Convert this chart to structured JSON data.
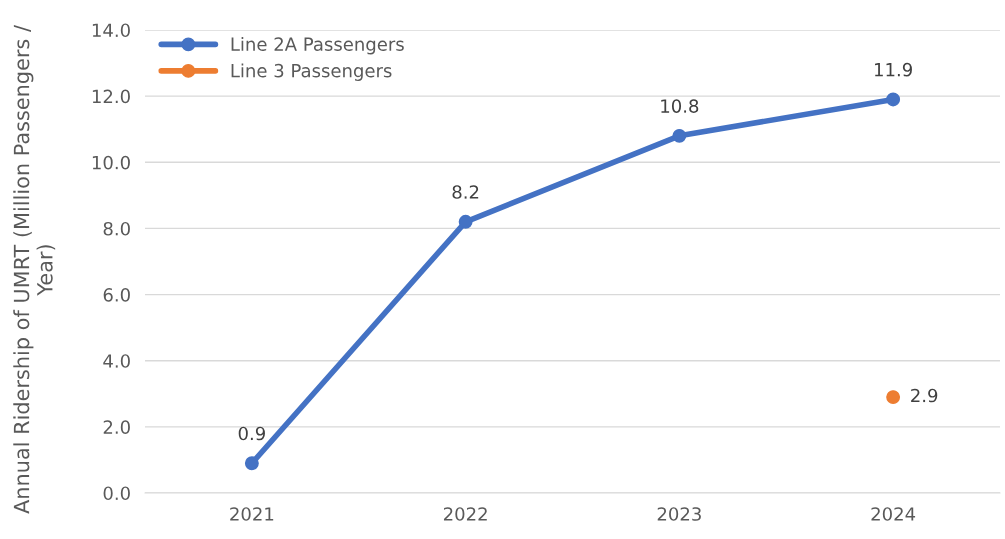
{
  "chart_data": {
    "type": "line",
    "ylabel": "Annual Ridership of UMRT (Million Passengers / Year)",
    "categories": [
      "2021",
      "2022",
      "2023",
      "2024"
    ],
    "series": [
      {
        "name": "Line 2A Passengers",
        "color": "#4472c4",
        "values": [
          0.9,
          8.2,
          10.8,
          11.9
        ]
      },
      {
        "name": "Line 3 Passengers",
        "color": "#ed7d31",
        "values": [
          null,
          null,
          null,
          2.9
        ]
      }
    ],
    "ylim": [
      0,
      14
    ],
    "yticks": [
      {
        "value": 0,
        "label": "0.0"
      },
      {
        "value": 2,
        "label": "2.0"
      },
      {
        "value": 4,
        "label": "4.0"
      },
      {
        "value": 6,
        "label": "6.0"
      },
      {
        "value": 8,
        "label": "8.0"
      },
      {
        "value": 10,
        "label": "10.0"
      },
      {
        "value": 12,
        "label": "12.0"
      },
      {
        "value": 14,
        "label": "14.0"
      }
    ],
    "grid": "y",
    "legend": "top left",
    "marker": "circle",
    "line_style": "solid",
    "data_labels": true
  }
}
